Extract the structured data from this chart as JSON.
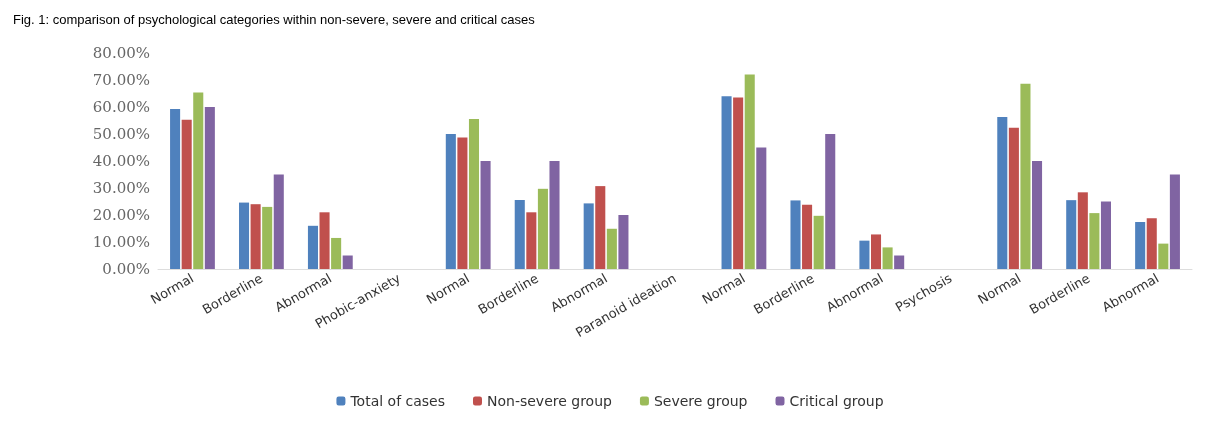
{
  "chart_data": {
    "type": "bar",
    "title": "Fig. 1: comparison of psychological categories within non-severe, severe and critical cases",
    "categories": [
      "Normal",
      "Borderline",
      "Abnormal",
      "Phobic-anxiety",
      "Normal",
      "Borderline",
      "Abnormal",
      "Paranoid ideation",
      "Normal",
      "Borderline",
      "Abnormal",
      "Psychosis",
      "Normal",
      "Borderline",
      "Abnormal"
    ],
    "series": [
      {
        "name": "Total of cases",
        "color": "#4f81bd",
        "values": [
          59.3,
          24.6,
          16,
          null,
          50,
          25.6,
          24.3,
          null,
          64,
          25.4,
          10.5,
          null,
          56.3,
          25.5,
          17.4
        ]
      },
      {
        "name": "Non-severe group",
        "color": "#c0504d",
        "values": [
          55.3,
          24,
          21,
          null,
          48.7,
          21,
          30.7,
          null,
          63.5,
          23.8,
          12.8,
          null,
          52.3,
          28.4,
          18.8
        ]
      },
      {
        "name": "Severe group",
        "color": "#9bbb59",
        "values": [
          65.4,
          23,
          11.5,
          null,
          55.6,
          29.7,
          14.9,
          null,
          72,
          19.7,
          8,
          null,
          68.6,
          20.7,
          9.4
        ]
      },
      {
        "name": "Critical group",
        "color": "#8064a2",
        "values": [
          60,
          35,
          5,
          null,
          40,
          40,
          20,
          null,
          45,
          50,
          5,
          null,
          40,
          25,
          35
        ]
      }
    ],
    "ylim": [
      0,
      80
    ],
    "yticks": [
      {
        "value": 0,
        "label": "0.00%"
      },
      {
        "value": 10,
        "label": "10.00%"
      },
      {
        "value": 20,
        "label": "20.00%"
      },
      {
        "value": 30,
        "label": "30.00%"
      },
      {
        "value": 40,
        "label": "40.00%"
      },
      {
        "value": 50,
        "label": "50.00%"
      },
      {
        "value": 60,
        "label": "60.00%"
      },
      {
        "value": 70,
        "label": "70.00%"
      },
      {
        "value": 80,
        "label": "80.00%"
      }
    ],
    "grid": false,
    "legend": "bottom"
  }
}
